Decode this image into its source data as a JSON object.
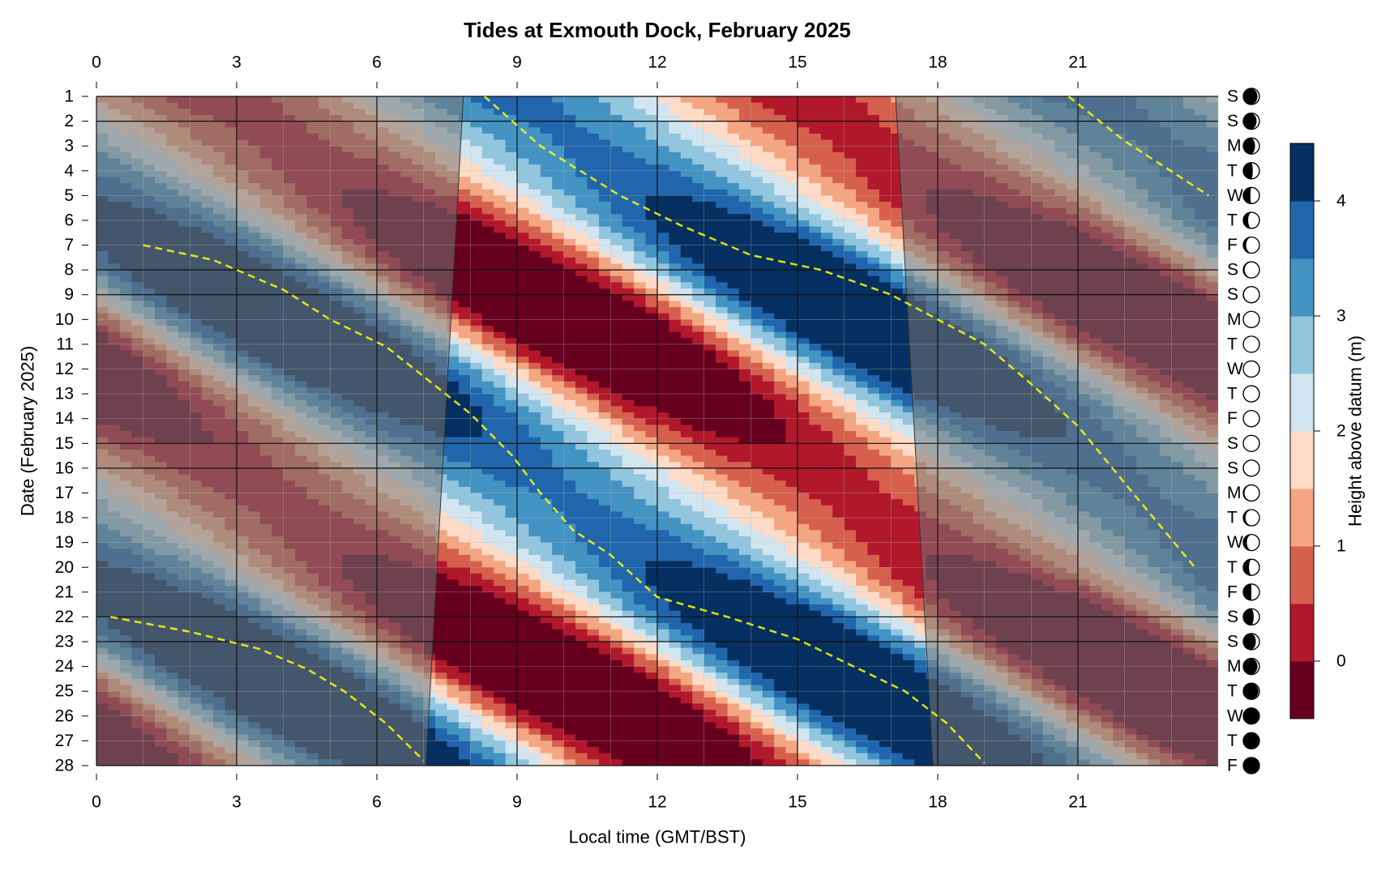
{
  "chart_data": {
    "type": "heatmap",
    "title": "Tides at Exmouth Dock, February 2025",
    "xlabel": "Local time (GMT/BST)",
    "ylabel": "Date (February 2025)",
    "colorbar_label": "Height above datum (m)",
    "x_ticks": [
      0,
      3,
      6,
      9,
      12,
      15,
      18,
      21
    ],
    "xlim": [
      0,
      24
    ],
    "y_ticks": [
      1,
      2,
      3,
      4,
      5,
      6,
      7,
      8,
      9,
      10,
      11,
      12,
      13,
      14,
      15,
      16,
      17,
      18,
      19,
      20,
      21,
      22,
      23,
      24,
      25,
      26,
      27,
      28
    ],
    "ylim": [
      1,
      28
    ],
    "colorbar_ticks": [
      0,
      1,
      2,
      3,
      4
    ],
    "colorbar_range": [
      -0.5,
      4.5
    ],
    "color_levels": [
      {
        "from": -0.5,
        "to": 0.0,
        "color": "#67001f"
      },
      {
        "from": 0.0,
        "to": 0.5,
        "color": "#b2182b"
      },
      {
        "from": 0.5,
        "to": 1.0,
        "color": "#d6604d"
      },
      {
        "from": 1.0,
        "to": 1.5,
        "color": "#f4a582"
      },
      {
        "from": 1.5,
        "to": 2.0,
        "color": "#fddbc7"
      },
      {
        "from": 2.0,
        "to": 2.5,
        "color": "#d1e5f0"
      },
      {
        "from": 2.5,
        "to": 3.0,
        "color": "#92c5de"
      },
      {
        "from": 3.0,
        "to": 3.5,
        "color": "#4393c3"
      },
      {
        "from": 3.5,
        "to": 4.0,
        "color": "#2166ac"
      },
      {
        "from": 4.0,
        "to": 4.5,
        "color": "#053061"
      }
    ],
    "daylight": [
      {
        "day": 1,
        "sunrise": 7.85,
        "sunset": 17.1
      },
      {
        "day": 28,
        "sunrise": 7.05,
        "sunset": 17.9
      }
    ],
    "weekdays": [
      "S",
      "S",
      "M",
      "T",
      "W",
      "T",
      "F",
      "S",
      "S",
      "M",
      "T",
      "W",
      "T",
      "F",
      "S",
      "S",
      "M",
      "T",
      "W",
      "T",
      "F",
      "S",
      "S",
      "M",
      "T",
      "W",
      "T",
      "F"
    ],
    "moon_phase": [
      0.1,
      0.13,
      0.17,
      0.22,
      0.27,
      0.32,
      0.37,
      0.42,
      0.46,
      0.49,
      0.52,
      0.53,
      0.53,
      0.52,
      0.5,
      0.47,
      0.43,
      0.39,
      0.35,
      0.3,
      0.25,
      0.2,
      0.15,
      0.1,
      0.06,
      0.03,
      0.01,
      0.0
    ],
    "weekend_rows": [
      1,
      2,
      8,
      9,
      15,
      16,
      22,
      23
    ],
    "high_tide_times": [
      {
        "name": "high tide (series A)",
        "points": [
          [
            8.3,
            1
          ],
          [
            9.5,
            3
          ],
          [
            11.2,
            5
          ],
          [
            12.5,
            6.2
          ],
          [
            14,
            7.4
          ],
          [
            15.5,
            8
          ],
          [
            17,
            9
          ],
          [
            18,
            10
          ],
          [
            19,
            11
          ],
          [
            20,
            12.6
          ],
          [
            21,
            14.3
          ],
          [
            22,
            16.6
          ],
          [
            23.5,
            20
          ]
        ]
      },
      {
        "name": "high tide (series B)",
        "points": [
          [
            1,
            7
          ],
          [
            2.5,
            7.6
          ],
          [
            4,
            8.8
          ],
          [
            5,
            10
          ],
          [
            6.2,
            11.1
          ],
          [
            7,
            12.3
          ],
          [
            8,
            13.8
          ],
          [
            8.9,
            15.5
          ],
          [
            9.5,
            17
          ],
          [
            10.2,
            18.5
          ],
          [
            11,
            19.5
          ],
          [
            12,
            21.2
          ],
          [
            13.5,
            22
          ],
          [
            15,
            22.9
          ],
          [
            16.2,
            24
          ],
          [
            17.3,
            25
          ],
          [
            18.2,
            26.3
          ],
          [
            19,
            27.9
          ]
        ]
      },
      {
        "name": "high tide (series C)",
        "points": [
          [
            0.3,
            22
          ],
          [
            2,
            22.6
          ],
          [
            3.5,
            23.3
          ],
          [
            4.5,
            24.1
          ],
          [
            5.3,
            25
          ],
          [
            6.2,
            26.3
          ],
          [
            7,
            27.8
          ]
        ]
      },
      {
        "name": "high tide (series D)",
        "points": [
          [
            20.8,
            1
          ],
          [
            22,
            2.8
          ],
          [
            23.8,
            5
          ]
        ]
      }
    ]
  }
}
